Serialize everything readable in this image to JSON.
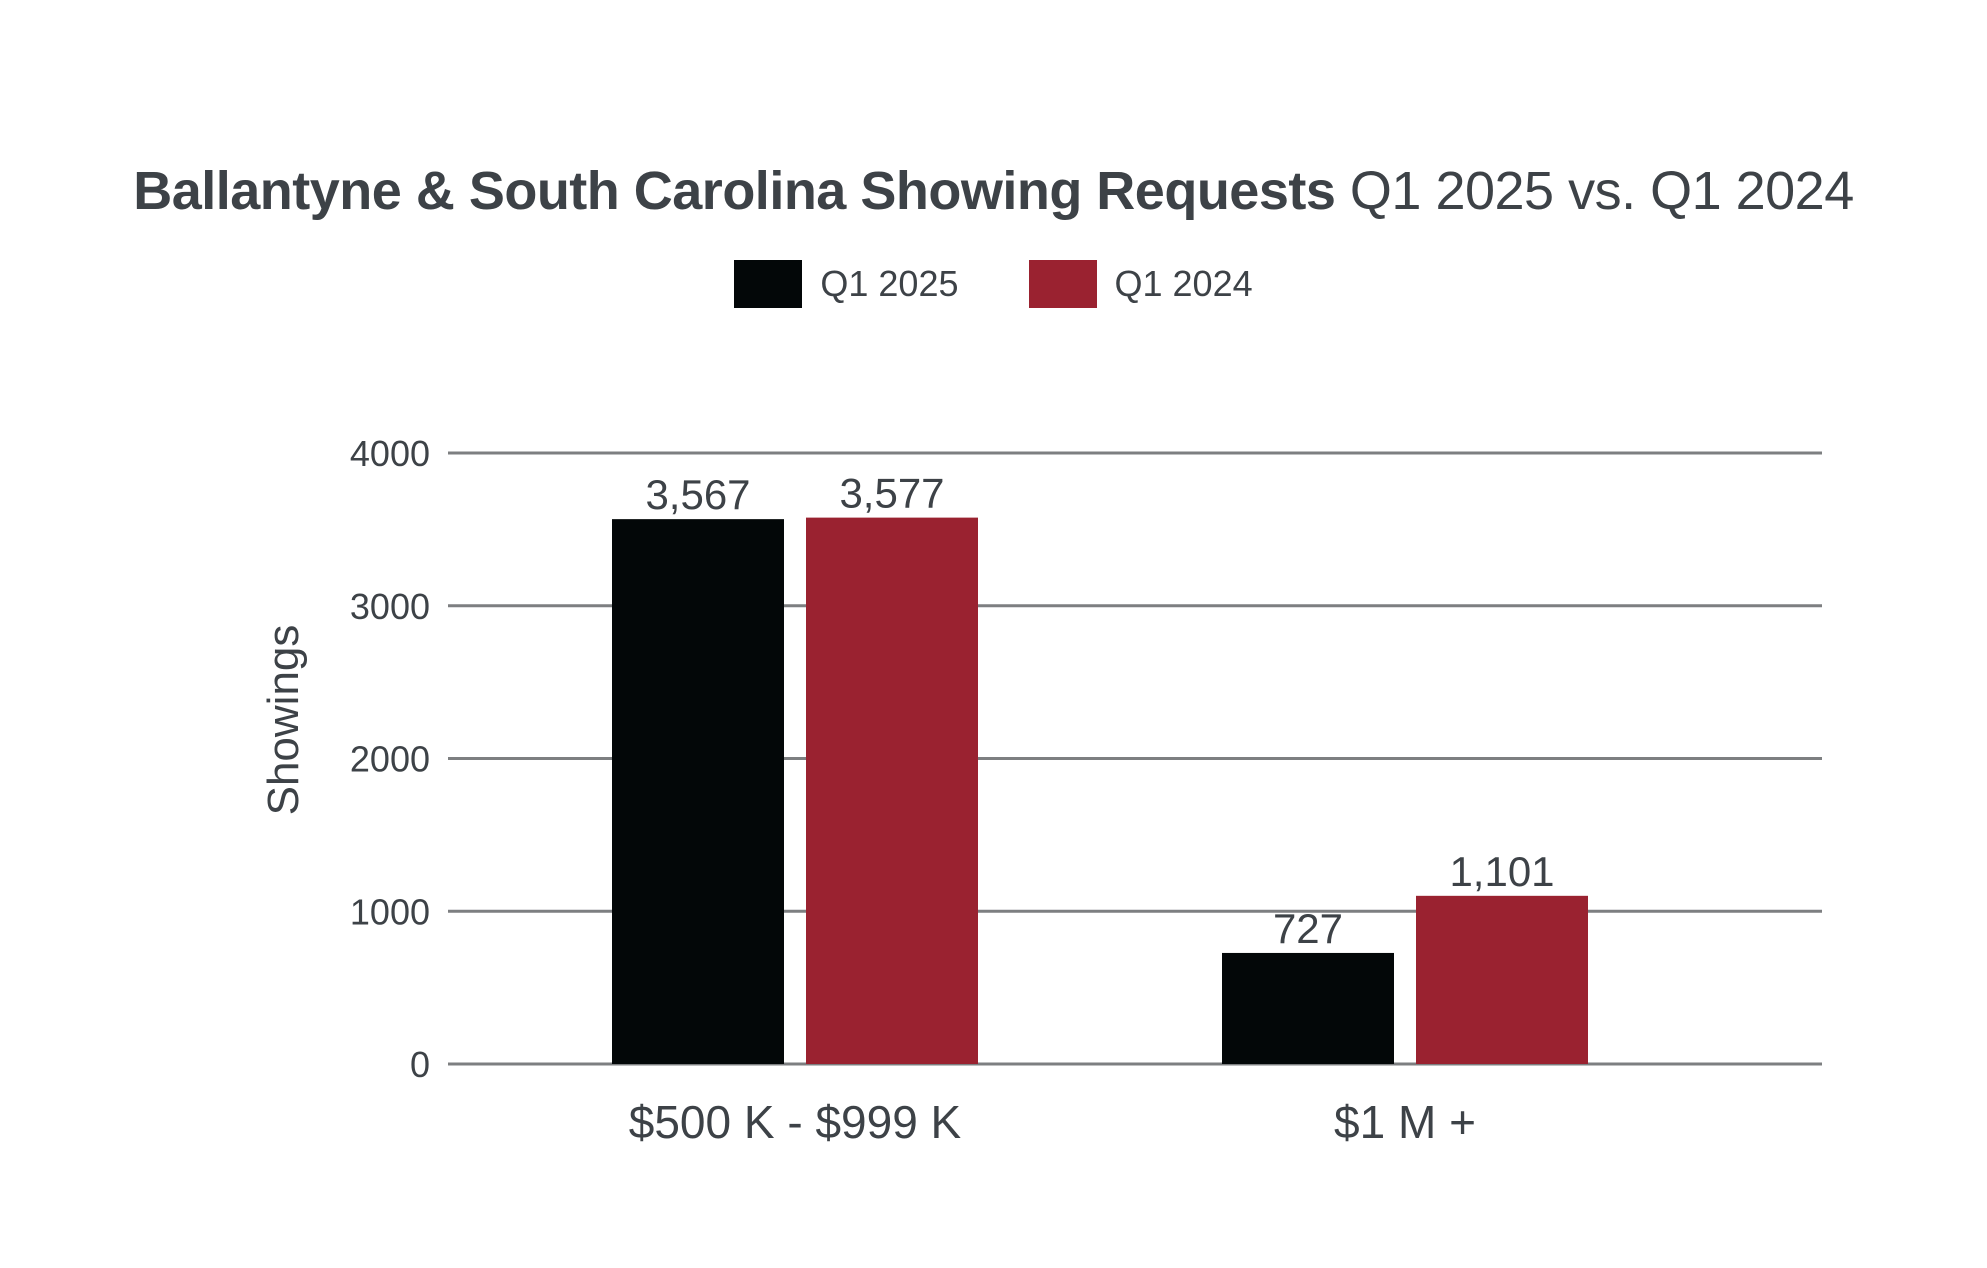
{
  "chart_data": {
    "type": "bar",
    "title_bold": "Ballantyne & South Carolina Showing Requests",
    "title_rest": "Q1 2025 vs. Q1 2024",
    "ylabel": "Showings",
    "xlabel": "",
    "ylim": [
      0,
      4000
    ],
    "yticks": [
      "0",
      "1000",
      "2000",
      "3000",
      "4000"
    ],
    "grid": true,
    "legend_position": "top-center",
    "categories": [
      "$500 K - $999 K",
      "$1 M +"
    ],
    "series": [
      {
        "name": "Q1 2025",
        "color": "#030708",
        "values": [
          3567,
          727
        ],
        "labels": [
          "3,567",
          "727"
        ]
      },
      {
        "name": "Q1 2024",
        "color": "#9a2230",
        "values": [
          3577,
          1101
        ],
        "labels": [
          "3,577",
          "1,101"
        ]
      }
    ]
  }
}
